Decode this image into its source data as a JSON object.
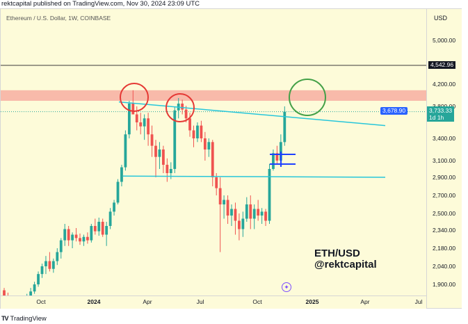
{
  "header": {
    "published_text": "rektcapital published on TradingView.com, Nov 30, 2024 23:09 UTC"
  },
  "chart": {
    "symbol_label": "Ethereum / U.S. Dollar, 1W, COINBASE",
    "currency": "USD",
    "overlay_pair": "ETH/USD",
    "overlay_handle": "@rektcapital",
    "price_ticks": [
      "5,000.00",
      "4,200.00",
      "3,800.00",
      "3,400.00",
      "3,100.00",
      "2,900.00",
      "2,700.00",
      "2,500.00",
      "2,340.00",
      "2,180.00",
      "2,040.00",
      "1,900.00"
    ],
    "time_ticks": [
      "Oct",
      "2024",
      "Apr",
      "Jul",
      "Oct",
      "2025",
      "Apr",
      "Jul"
    ],
    "tags": {
      "resistance_level": "4,542.96",
      "trendline_value": "3,678.90",
      "last_price": "3,733.33",
      "countdown": "1d 1h"
    },
    "colors": {
      "up": "#26a69a",
      "down": "#ef5350",
      "trendline": "#26c6da",
      "zone": "#f7b2a4",
      "red_circle": "#e53935",
      "green_circle": "#43a047",
      "blue_box": "#1e40ff",
      "background": "#fdfbd9"
    }
  },
  "chart_data": {
    "type": "candlestick",
    "price_axis_ticks": [
      5000,
      4200,
      3800,
      3400,
      3100,
      2900,
      2700,
      2500,
      2340,
      2180,
      2040,
      1900
    ],
    "horizontal_line": 4542.96,
    "resistance_zone": [
      3900,
      4090
    ],
    "support_line": 2900,
    "last_price": 3733.33,
    "trendline_value": 3678.9,
    "candles_ohlc": [
      [
        1850,
        1870,
        1780,
        1800
      ],
      [
        1800,
        1830,
        1760,
        1790
      ],
      [
        1720,
        1760,
        1660,
        1690
      ],
      [
        1600,
        1640,
        1540,
        1570
      ],
      [
        1640,
        1720,
        1620,
        1700
      ],
      [
        1700,
        1780,
        1680,
        1750
      ],
      [
        1750,
        1820,
        1720,
        1800
      ],
      [
        1800,
        1870,
        1780,
        1840
      ],
      [
        1840,
        1920,
        1820,
        1900
      ],
      [
        1900,
        2000,
        1880,
        1980
      ],
      [
        1980,
        2060,
        1950,
        2040
      ],
      [
        2040,
        2120,
        1980,
        2080
      ],
      [
        2080,
        2150,
        2000,
        2020
      ],
      [
        2020,
        2100,
        1990,
        2080
      ],
      [
        2080,
        2180,
        2050,
        2150
      ],
      [
        2150,
        2270,
        2100,
        2250
      ],
      [
        2250,
        2400,
        2200,
        2350
      ],
      [
        2350,
        2380,
        2200,
        2250
      ],
      [
        2250,
        2320,
        2180,
        2300
      ],
      [
        2300,
        2360,
        2240,
        2270
      ],
      [
        2270,
        2310,
        2210,
        2240
      ],
      [
        2240,
        2300,
        2200,
        2280
      ],
      [
        2280,
        2320,
        2220,
        2250
      ],
      [
        2250,
        2400,
        2230,
        2380
      ],
      [
        2380,
        2450,
        2300,
        2330
      ],
      [
        2330,
        2460,
        2290,
        2420
      ],
      [
        2420,
        2450,
        2280,
        2300
      ],
      [
        2300,
        2420,
        2200,
        2380
      ],
      [
        2380,
        2560,
        2350,
        2520
      ],
      [
        2520,
        2650,
        2480,
        2620
      ],
      [
        2620,
        2880,
        2600,
        2850
      ],
      [
        2850,
        3050,
        2800,
        3020
      ],
      [
        3020,
        3500,
        2980,
        3450
      ],
      [
        3450,
        3900,
        3400,
        3850
      ],
      [
        3850,
        4090,
        3700,
        3700
      ],
      [
        3700,
        3800,
        3500,
        3600
      ],
      [
        3600,
        3720,
        3450,
        3550
      ],
      [
        3550,
        3700,
        3380,
        3650
      ],
      [
        3650,
        3720,
        3300,
        3450
      ],
      [
        3450,
        3560,
        3150,
        3300
      ],
      [
        3300,
        3380,
        2900,
        3150
      ],
      [
        3150,
        3350,
        3000,
        3250
      ],
      [
        3250,
        3300,
        2950,
        3050
      ],
      [
        3050,
        3130,
        2850,
        2950
      ],
      [
        2950,
        3080,
        2880,
        3000
      ],
      [
        3000,
        3800,
        2950,
        3750
      ],
      [
        3750,
        3950,
        3650,
        3850
      ],
      [
        3850,
        3920,
        3700,
        3760
      ],
      [
        3760,
        3810,
        3600,
        3650
      ],
      [
        3650,
        3720,
        3420,
        3500
      ],
      [
        3500,
        3560,
        3280,
        3400
      ],
      [
        3400,
        3600,
        3350,
        3560
      ],
      [
        3560,
        3620,
        3350,
        3400
      ],
      [
        3400,
        3480,
        3100,
        3250
      ],
      [
        3250,
        3400,
        3150,
        3350
      ],
      [
        3350,
        3380,
        2800,
        2900
      ],
      [
        2900,
        2950,
        2700,
        2780
      ],
      [
        2780,
        2900,
        2150,
        2600
      ],
      [
        2600,
        2700,
        2450,
        2650
      ],
      [
        2650,
        2700,
        2400,
        2480
      ],
      [
        2480,
        2600,
        2380,
        2550
      ],
      [
        2550,
        2620,
        2300,
        2430
      ],
      [
        2430,
        2500,
        2250,
        2350
      ],
      [
        2350,
        2520,
        2280,
        2450
      ],
      [
        2450,
        2680,
        2420,
        2600
      ],
      [
        2600,
        2700,
        2350,
        2450
      ],
      [
        2450,
        2600,
        2350,
        2550
      ],
      [
        2550,
        2650,
        2430,
        2480
      ],
      [
        2480,
        2560,
        2400,
        2520
      ],
      [
        2520,
        2550,
        2380,
        2430
      ],
      [
        2430,
        3060,
        2400,
        3000
      ],
      [
        3000,
        3250,
        2980,
        3200
      ],
      [
        3200,
        3300,
        3050,
        3100
      ],
      [
        3100,
        3450,
        3050,
        3350
      ],
      [
        3350,
        3800,
        3300,
        3733.33
      ]
    ]
  }
}
